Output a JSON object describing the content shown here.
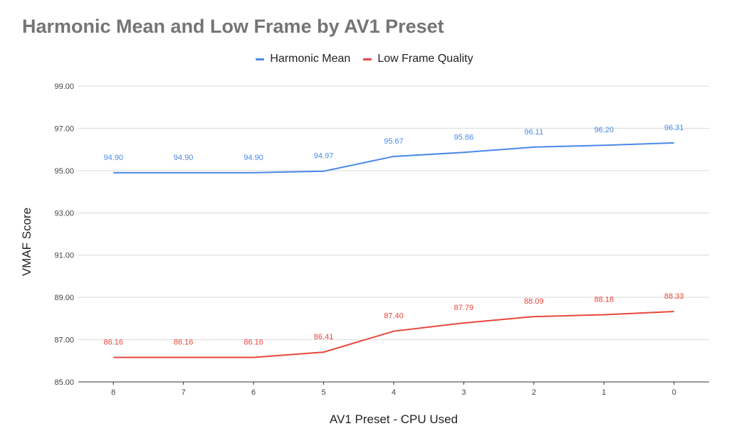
{
  "chart_data": {
    "type": "line",
    "title": "Harmonic Mean and Low Frame by AV1 Preset",
    "xlabel": "AV1 Preset - CPU Used",
    "ylabel": "VMAF Score",
    "categories": [
      "8",
      "7",
      "6",
      "5",
      "4",
      "3",
      "2",
      "1",
      "0"
    ],
    "ylim": [
      85,
      99
    ],
    "yticks": [
      "85.00",
      "87.00",
      "89.00",
      "91.00",
      "93.00",
      "95.00",
      "97.00",
      "99.00"
    ],
    "grid": true,
    "legend_position": "top",
    "series": [
      {
        "name": "Harmonic Mean",
        "color": "#4a89e8",
        "values": [
          94.9,
          94.9,
          94.9,
          94.97,
          95.67,
          95.86,
          96.11,
          96.2,
          96.31
        ],
        "labels": [
          "94.90",
          "94.90",
          "94.90",
          "94.97",
          "95.67",
          "95.86",
          "96.11",
          "96.20",
          "96.31"
        ]
      },
      {
        "name": "Low Frame Quality",
        "color": "#e8473b",
        "values": [
          86.16,
          86.16,
          86.16,
          86.41,
          87.4,
          87.79,
          88.09,
          88.18,
          88.33
        ],
        "labels": [
          "86.16",
          "86.16",
          "86.16",
          "86.41",
          "87.40",
          "87.79",
          "88.09",
          "88.18",
          "88.33"
        ]
      }
    ]
  }
}
